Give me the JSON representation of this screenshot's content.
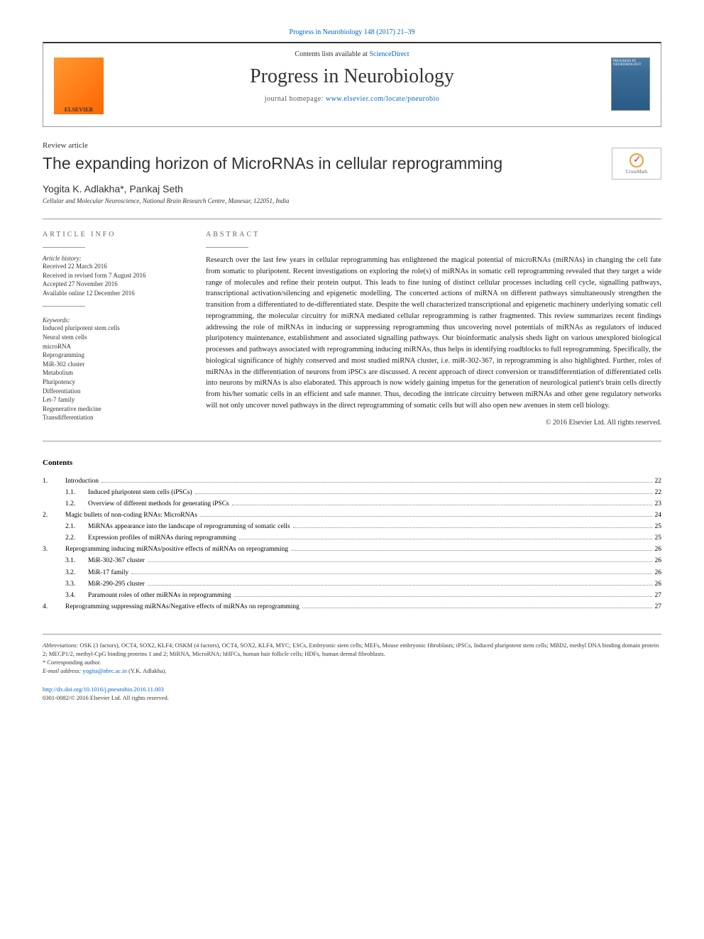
{
  "top_link": {
    "prefix": "",
    "journal_ref": "Progress in Neurobiology 148 (2017) 21–39"
  },
  "header": {
    "contents_text": "Contents lists available at ",
    "contents_link": "ScienceDirect",
    "journal_name": "Progress in Neurobiology",
    "homepage_label": "journal homepage: ",
    "homepage_url": "www.elsevier.com/locate/pneurobio",
    "elsevier_label": "ELSEVIER",
    "cover_text": "PROGRESS IN NEUROBIOLOGY"
  },
  "article": {
    "type": "Review article",
    "title": "The expanding horizon of MicroRNAs in cellular reprogramming",
    "authors": "Yogita K. Adlakha*, Pankaj Seth",
    "affiliation": "Cellular and Molecular Neuroscience, National Brain Research Centre, Manesar, 122051, India",
    "crossmark_label": "CrossMark"
  },
  "info": {
    "label": "ARTICLE INFO",
    "history_label": "Article history:",
    "history": [
      "Received 22 March 2016",
      "Received in revised form 7 August 2016",
      "Accepted 27 November 2016",
      "Available online 12 December 2016"
    ],
    "keywords_label": "Keywords:",
    "keywords": [
      "Induced pluripotent stem cells",
      "Neural stem cells",
      "microRNA",
      "Reprogramming",
      "MiR-302 cluster",
      "Metabolism",
      "Pluripotency",
      "Differentiation",
      "Let-7 family",
      "Regenerative medicine",
      "Transdifferentiation"
    ]
  },
  "abstract": {
    "label": "ABSTRACT",
    "text": "Research over the last few years in cellular reprogramming has enlightened the magical potential of microRNAs (miRNAs) in changing the cell fate from somatic to pluripotent. Recent investigations on exploring the role(s) of miRNAs in somatic cell reprogramming revealed that they target a wide range of molecules and refine their protein output. This leads to fine tuning of distinct cellular processes including cell cycle, signalling pathways, transcriptional activation/silencing and epigenetic modelling. The concerted actions of miRNA on different pathways simultaneously strengthen the transition from a differentiated to de-differentiated state. Despite the well characterized transcriptional and epigenetic machinery underlying somatic cell reprogramming, the molecular circuitry for miRNA mediated cellular reprogramming is rather fragmented. This review summarizes recent findings addressing the role of miRNAs in inducing or suppressing reprogramming thus uncovering novel potentials of miRNAs as regulators of induced pluripotency maintenance, establishment and associated signalling pathways. Our bioinformatic analysis sheds light on various unexplored biological processes and pathways associated with reprogramming inducing miRNAs, thus helps in identifying roadblocks to full reprogramming. Specifically, the biological significance of highly conserved and most studied miRNA cluster, i.e. miR-302-367, in reprogramming is also highlighted. Further, roles of miRNAs in the differentiation of neurons from iPSCs are discussed. A recent approach of direct conversion or transdifferentiation of differentiated cells into neurons by miRNAs is also elaborated. This approach is now widely gaining impetus for the generation of neurological patient's brain cells directly from his/her somatic cells in an efficient and safe manner. Thus, decoding the intricate circuitry between miRNAs and other gene regulatory networks will not only uncover novel pathways in the direct reprogramming of somatic cells but will also open new avenues in stem cell biology.",
    "copyright": "© 2016 Elsevier Ltd. All rights reserved."
  },
  "contents": {
    "label": "Contents",
    "items": [
      {
        "num": "1.",
        "sub": "",
        "title": "Introduction",
        "page": "22"
      },
      {
        "num": "",
        "sub": "1.1.",
        "title": "Induced pluripotent stem cells (iPSCs)",
        "page": "22"
      },
      {
        "num": "",
        "sub": "1.2.",
        "title": "Overview of different methods for generating iPSCs",
        "page": "23"
      },
      {
        "num": "2.",
        "sub": "",
        "title": "Magic bullets of non-coding RNAs: MicroRNAs",
        "page": "24"
      },
      {
        "num": "",
        "sub": "2.1.",
        "title": "MiRNAs appearance into the landscape of reprogramming of somatic cells",
        "page": "25"
      },
      {
        "num": "",
        "sub": "2.2.",
        "title": "Expression profiles of miRNAs during reprogramming",
        "page": "25"
      },
      {
        "num": "3.",
        "sub": "",
        "title": "Reprogramming inducing miRNAs/positive effects of miRNAs on reprogramming",
        "page": "26"
      },
      {
        "num": "",
        "sub": "3.1.",
        "title": "MiR-302-367 cluster",
        "page": "26"
      },
      {
        "num": "",
        "sub": "3.2.",
        "title": "MiR-17 family",
        "page": "26"
      },
      {
        "num": "",
        "sub": "3.3.",
        "title": "MiR-290-295 cluster",
        "page": "26"
      },
      {
        "num": "",
        "sub": "3.4.",
        "title": "Paramount roles of other miRNAs in reprogramming",
        "page": "27"
      },
      {
        "num": "4.",
        "sub": "",
        "title": "Reprogramming suppressing miRNAs/Negative effects of miRNAs on reprogramming",
        "page": "27"
      }
    ]
  },
  "footer": {
    "abbrev_label": "Abbreviations:",
    "abbrev_text": " OSK (3 factors), OCT4, SOX2, KLF4; OSKM (4 factors), OCT4, SOX2, KLF4, MYC; ESCs, Embryonic stem cells; MEFs, Mouse embryonic fibroblasts; iPSCs, Induced pluripotent stem cells; MBD2, methyl DNA binding domain protein 2; MECP1/2, methyl-CpG binding proteins 1 and 2; MiRNA, MicroRNA; hHFCs, human hair follicle cells; HDFs, human dermal fibroblasts.",
    "corresponding": "* Corresponding author.",
    "email_label": "E-mail address: ",
    "email": "yogita@nbrc.ac.in",
    "email_suffix": " (Y.K. Adlakha).",
    "doi": "http://dx.doi.org/10.1016/j.pneurobio.2016.11.003",
    "issn_line": "0301-0082/© 2016 Elsevier Ltd. All rights reserved."
  },
  "colors": {
    "link": "#0066cc",
    "text": "#000000",
    "border": "#999999"
  }
}
